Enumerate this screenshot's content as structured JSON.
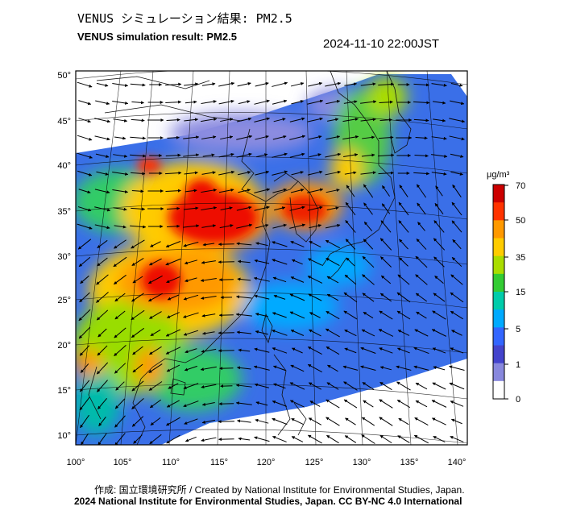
{
  "title_ja": "VENUS シミュレーション結果: PM2.5",
  "title_en": "VENUS simulation result: PM2.5",
  "timestamp": "2024-11-10 22:00JST",
  "credit_line1": "作成: 国立環境研究所 / Created by National Institute for Environmental Studies, Japan.",
  "credit_line2": "2024 National Institute for Environmental Studies, Japan. CC BY-NC 4.0 International",
  "map": {
    "lon_ticks": [
      "100°",
      "105°",
      "110°",
      "115°",
      "120°",
      "125°",
      "130°",
      "135°",
      "140°"
    ],
    "lat_ticks": [
      "50°",
      "45°",
      "40°",
      "35°",
      "30°",
      "25°",
      "20°",
      "15°",
      "10°"
    ],
    "lon_range": [
      100,
      142
    ],
    "lat_range": [
      9,
      51
    ]
  },
  "colorbar": {
    "unit": "μg/m³",
    "labels": [
      "70",
      "50",
      "35",
      "15",
      "5",
      "1",
      "0"
    ],
    "colors": [
      "#cc0000",
      "#ff3300",
      "#ff9900",
      "#ffcc00",
      "#aadd00",
      "#33cc33",
      "#00ccaa",
      "#00aaff",
      "#3366ff",
      "#4444cc",
      "#8888dd",
      "#ffffff"
    ]
  },
  "concentration": {
    "high_zones": [
      {
        "region": "North China Plain",
        "level": "high"
      },
      {
        "region": "South China / Guangxi",
        "level": "high"
      },
      {
        "region": "Korean Peninsula",
        "level": "high"
      }
    ]
  }
}
